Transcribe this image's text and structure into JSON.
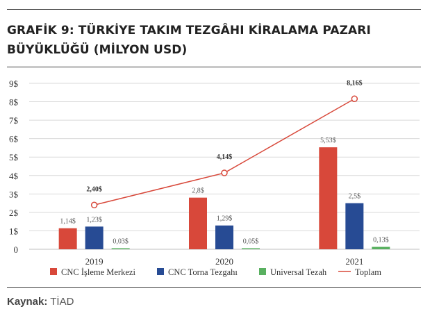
{
  "title_line1": "GRAFİK 9: TÜRKİYE TAKIM TEZGÂHI KİRALAMA PAZARI",
  "title_line2": "BÜYÜKLÜĞÜ (MİLYON USD)",
  "source_label": "Kaynak:",
  "source_value": "TİAD",
  "chart_data": {
    "type": "bar",
    "categories": [
      "2019",
      "2020",
      "2021"
    ],
    "y_ticks": [
      "0",
      "1$",
      "2$",
      "3$",
      "4$",
      "5$",
      "6$",
      "7$",
      "8$",
      "9$"
    ],
    "ylim": [
      0,
      9
    ],
    "grid": true,
    "legend_position": "bottom",
    "series": [
      {
        "name": "CNC İşleme Merkezi",
        "values": [
          1.14,
          2.8,
          5.53
        ],
        "labels": [
          "1,14$",
          "2,8$",
          "5,53$"
        ],
        "color": "#d8483a",
        "kind": "bar"
      },
      {
        "name": "CNC Torna Tezgahı",
        "values": [
          1.23,
          1.29,
          2.5
        ],
        "labels": [
          "1,23$",
          "1,29$",
          "2,5$"
        ],
        "color": "#274b94",
        "kind": "bar"
      },
      {
        "name": "Universal Tezah",
        "values": [
          0.03,
          0.05,
          0.13
        ],
        "labels": [
          "0,03$",
          "0,05$",
          "0,13$"
        ],
        "color": "#59b060",
        "kind": "bar"
      },
      {
        "name": "Toplam",
        "values": [
          2.4,
          4.14,
          8.16
        ],
        "labels": [
          "2,40$",
          "4,14$",
          "8,16$"
        ],
        "color": "#d8483a",
        "kind": "line"
      }
    ]
  }
}
